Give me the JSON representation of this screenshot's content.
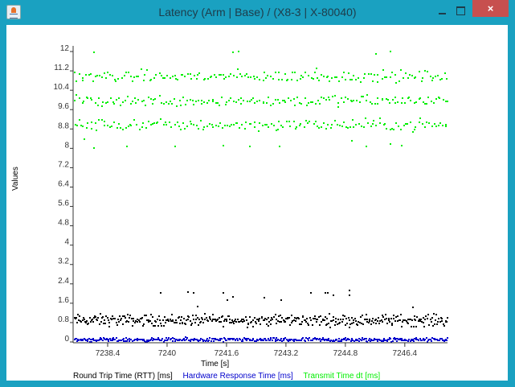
{
  "window": {
    "title": "Latency (Arm | Base) / (X8-3 | X-80040)",
    "icon": "java-icon",
    "controls": {
      "minimize": "minimize-icon",
      "maximize": "maximize-icon",
      "close": "×"
    }
  },
  "chart_data": {
    "type": "scatter",
    "title": "",
    "xlabel": "Time [s]",
    "ylabel": "Values",
    "x_ticks": [
      "7238.4",
      "7240",
      "7241.6",
      "7243.2",
      "7244.8",
      "7246.4"
    ],
    "y_ticks": [
      "0",
      "0.8",
      "1.6",
      "2.4",
      "3.2",
      "4",
      "4.8",
      "5.6",
      "6.4",
      "7.2",
      "8",
      "8.8",
      "9.6",
      "10.4",
      "11.2",
      "12"
    ],
    "xlim": [
      7237.47,
      7247.55
    ],
    "ylim": [
      0,
      12.4
    ],
    "grid": false,
    "legend_position": "bottom",
    "series": [
      {
        "name": "Round Trip Time (RTT) [ms]",
        "color": "#000000",
        "band_center": 0.93,
        "band_spread": 0.35,
        "typical_range": [
          0.6,
          1.3
        ],
        "outliers": [
          [
            7239.8,
            2.05
          ],
          [
            7240.55,
            2.1
          ],
          [
            7240.7,
            2.05
          ],
          [
            7241.5,
            2.05
          ],
          [
            7241.6,
            1.75
          ],
          [
            7241.75,
            1.9
          ],
          [
            7243.05,
            1.75
          ],
          [
            7243.85,
            2.05
          ],
          [
            7244.25,
            2.05
          ],
          [
            7244.3,
            2.05
          ],
          [
            7244.45,
            1.95
          ],
          [
            7244.9,
            2.15
          ],
          [
            7244.9,
            1.95
          ],
          [
            7246.6,
            1.45
          ],
          [
            7242.6,
            1.85
          ],
          [
            7240.8,
            1.5
          ]
        ]
      },
      {
        "name": "Hardware Response Time [ms]",
        "color": "#0000cc",
        "band_center": 0.12,
        "band_spread": 0.12,
        "typical_range": [
          0.0,
          0.3
        ]
      },
      {
        "name": "Transmit Time dt [ms]",
        "color": "#00ee00",
        "bands": [
          {
            "center": 11.0,
            "spread": 0.35
          },
          {
            "center": 10.0,
            "spread": 0.35
          },
          {
            "center": 9.0,
            "spread": 0.35
          }
        ],
        "outliers": [
          [
            7238.0,
            12.0
          ],
          [
            7241.75,
            12.0
          ],
          [
            7241.9,
            12.05
          ],
          [
            7245.6,
            11.95
          ],
          [
            7246.0,
            12.05
          ],
          [
            7237.75,
            8.4
          ],
          [
            7238.0,
            8.05
          ],
          [
            7238.9,
            8.1
          ],
          [
            7240.2,
            8.1
          ],
          [
            7242.2,
            8.1
          ],
          [
            7243.0,
            8.1
          ],
          [
            7245.35,
            8.1
          ],
          [
            7246.0,
            8.2
          ],
          [
            7246.3,
            8.15
          ],
          [
            7244.0,
            11.35
          ],
          [
            7244.95,
            8.35
          ],
          [
            7241.5,
            8.15
          ]
        ]
      }
    ]
  },
  "legend": [
    {
      "label": "Round Trip Time (RTT) [ms]",
      "color": "#000000"
    },
    {
      "label": "Hardware Response Time [ms]",
      "color": "#0000cc"
    },
    {
      "label": "Transmit Time dt [ms]",
      "color": "#00ee00"
    }
  ]
}
